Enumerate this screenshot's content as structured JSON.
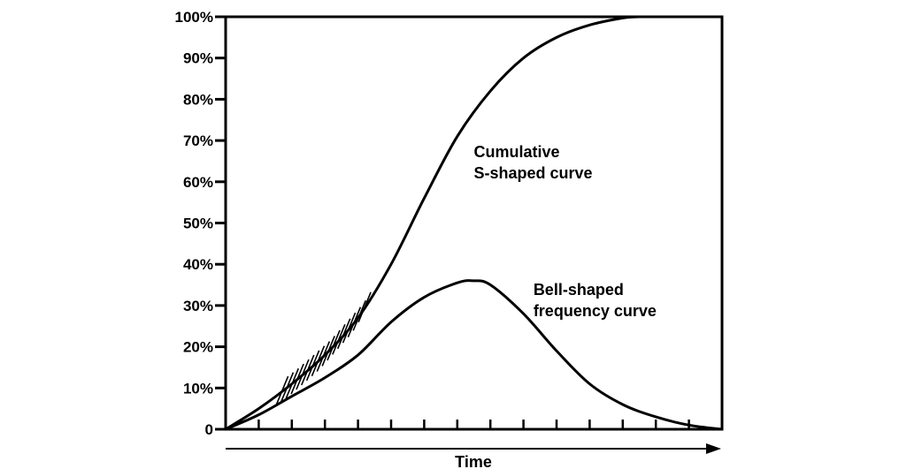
{
  "chart_data": {
    "type": "line",
    "title": "",
    "xlabel": "Time",
    "ylabel": "",
    "xlim": [
      0,
      15
    ],
    "ylim": [
      0,
      100
    ],
    "x_tick_count": 15,
    "grid": false,
    "y_ticks": [
      {
        "value": 0,
        "label": "0"
      },
      {
        "value": 10,
        "label": "10%"
      },
      {
        "value": 20,
        "label": "20%"
      },
      {
        "value": 30,
        "label": "30%"
      },
      {
        "value": 40,
        "label": "40%"
      },
      {
        "value": 50,
        "label": "50%"
      },
      {
        "value": 60,
        "label": "60%"
      },
      {
        "value": 70,
        "label": "70%"
      },
      {
        "value": 80,
        "label": "80%"
      },
      {
        "value": 90,
        "label": "90%"
      },
      {
        "value": 100,
        "label": "100%"
      }
    ],
    "series": [
      {
        "key": "cumulative",
        "x": [
          0,
          1,
          2,
          3,
          4,
          5,
          6,
          7,
          8,
          9,
          10,
          11,
          12,
          12.5
        ],
        "values": [
          0,
          5,
          11,
          18,
          27,
          40,
          56,
          71,
          82,
          90,
          95,
          98,
          99.7,
          100
        ]
      },
      {
        "key": "bell",
        "x": [
          0,
          1,
          2,
          3,
          4,
          5,
          6,
          7,
          7.5,
          8,
          9,
          10,
          11,
          12,
          13,
          14,
          15
        ],
        "values": [
          0,
          3.5,
          8,
          12.5,
          18,
          26,
          32,
          35.5,
          36,
          35,
          28,
          19,
          11,
          6,
          3,
          1,
          0
        ]
      }
    ],
    "annotations": [
      {
        "lines": [
          "Cumulative",
          "S-shaped curve"
        ],
        "x": 7.5,
        "y": 66
      },
      {
        "lines": [
          "Bell-shaped",
          "frequency curve"
        ],
        "x": 9.3,
        "y": 32.5
      }
    ],
    "hatched_region": {
      "series": "cumulative",
      "x_from": 1.7,
      "x_to": 4.2
    }
  },
  "colors": {
    "line": "#000000",
    "background": "#ffffff"
  }
}
